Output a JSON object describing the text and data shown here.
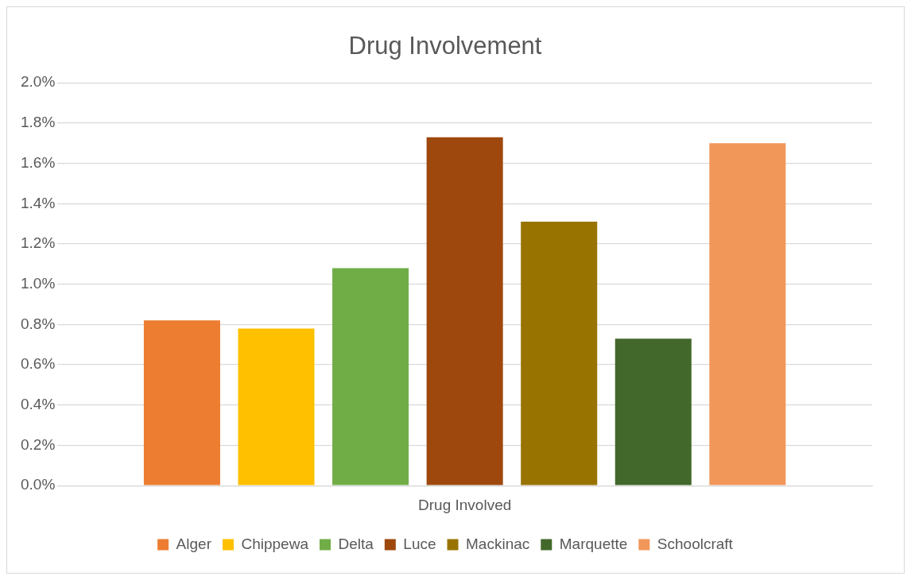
{
  "chart_data": {
    "type": "bar",
    "title": "Drug Involvement",
    "categories": [
      "Drug Involved"
    ],
    "series": [
      {
        "name": "Alger",
        "color": "#ed7d31",
        "values": [
          0.82
        ]
      },
      {
        "name": "Chippewa",
        "color": "#ffc000",
        "values": [
          0.78
        ]
      },
      {
        "name": "Delta",
        "color": "#70ad47",
        "values": [
          1.08
        ]
      },
      {
        "name": "Luce",
        "color": "#9e480e",
        "values": [
          1.73
        ]
      },
      {
        "name": "Mackinac",
        "color": "#997300",
        "values": [
          1.31
        ]
      },
      {
        "name": "Marquette",
        "color": "#43682b",
        "values": [
          0.73
        ]
      },
      {
        "name": "Schoolcraft",
        "color": "#f1975a",
        "values": [
          1.7
        ]
      }
    ],
    "ylim": [
      0,
      2
    ],
    "yticks": [
      {
        "value": 0,
        "label": "0.0%"
      },
      {
        "value": 0.2,
        "label": "0.2%"
      },
      {
        "value": 0.4,
        "label": "0.4%"
      },
      {
        "value": 0.6,
        "label": "0.6%"
      },
      {
        "value": 0.8,
        "label": "0.8%"
      },
      {
        "value": 1,
        "label": "1.0%"
      },
      {
        "value": 1.2,
        "label": "1.2%"
      },
      {
        "value": 1.4,
        "label": "1.4%"
      },
      {
        "value": 1.6,
        "label": "1.6%"
      },
      {
        "value": 1.8,
        "label": "1.8%"
      },
      {
        "value": 2,
        "label": "2.0%"
      }
    ],
    "grid": "y",
    "legend": "bottom"
  }
}
